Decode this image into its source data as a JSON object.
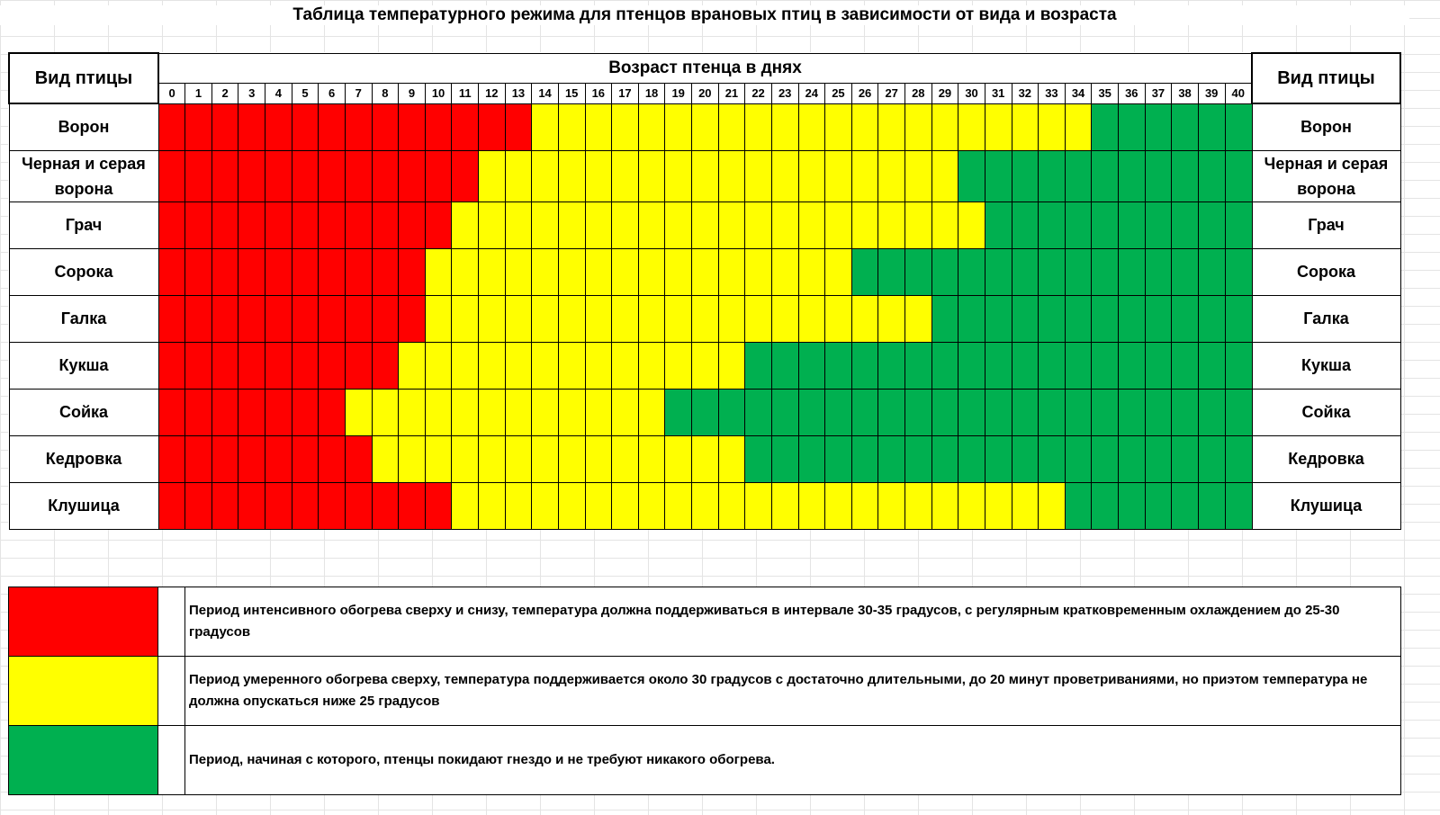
{
  "title": "Таблица температурного режима  для птенцов врановых птиц в зависимости от вида и возраста",
  "header": {
    "species_label": "Вид птицы",
    "age_label": "Возраст птенца в днях"
  },
  "days": [
    0,
    1,
    2,
    3,
    4,
    5,
    6,
    7,
    8,
    9,
    10,
    11,
    12,
    13,
    14,
    15,
    16,
    17,
    18,
    19,
    20,
    21,
    22,
    23,
    24,
    25,
    26,
    27,
    28,
    29,
    30,
    31,
    32,
    33,
    34,
    35,
    36,
    37,
    38,
    39,
    40
  ],
  "colors": {
    "red": "#ff0000",
    "yellow": "#ffff00",
    "green": "#00b050"
  },
  "rows": [
    {
      "name": "Ворон",
      "red_days": [
        0,
        13
      ],
      "yellow_days": [
        14,
        34
      ],
      "green_days": [
        35,
        40
      ]
    },
    {
      "name": "Черная и серая ворона",
      "red_days": [
        0,
        11
      ],
      "yellow_days": [
        12,
        29
      ],
      "green_days": [
        30,
        40
      ]
    },
    {
      "name": "Грач",
      "red_days": [
        0,
        10
      ],
      "yellow_days": [
        11,
        30
      ],
      "green_days": [
        31,
        40
      ]
    },
    {
      "name": "Сорока",
      "red_days": [
        0,
        9
      ],
      "yellow_days": [
        10,
        25
      ],
      "green_days": [
        26,
        40
      ]
    },
    {
      "name": "Галка",
      "red_days": [
        0,
        9
      ],
      "yellow_days": [
        10,
        28
      ],
      "green_days": [
        29,
        40
      ]
    },
    {
      "name": "Кукша",
      "red_days": [
        0,
        8
      ],
      "yellow_days": [
        9,
        21
      ],
      "green_days": [
        22,
        40
      ]
    },
    {
      "name": "Сойка",
      "red_days": [
        0,
        6
      ],
      "yellow_days": [
        7,
        18
      ],
      "green_days": [
        19,
        40
      ]
    },
    {
      "name": "Кедровка",
      "red_days": [
        0,
        7
      ],
      "yellow_days": [
        8,
        21
      ],
      "green_days": [
        22,
        40
      ]
    },
    {
      "name": "Клушица",
      "red_days": [
        0,
        10
      ],
      "yellow_days": [
        11,
        33
      ],
      "green_days": [
        34,
        40
      ]
    }
  ],
  "legend": [
    {
      "color": "red",
      "text": "Период интенсивного обогрева сверху и снизу, температура должна поддерживаться в интервале 30-35 градусов, с регулярным кратковременным охлаждением до 25-30 градусов"
    },
    {
      "color": "yellow",
      "text": "Период умеренного обогрева сверху, температура поддерживается около 30 градусов с достаточно длительными, до 20 минут проветриваниями, но приэтом температура не должна опускаться ниже 25 градусов"
    },
    {
      "color": "green",
      "text": "Период, начиная с которого, птенцы покидают гнездо и не требуют никакого обогрева."
    }
  ]
}
